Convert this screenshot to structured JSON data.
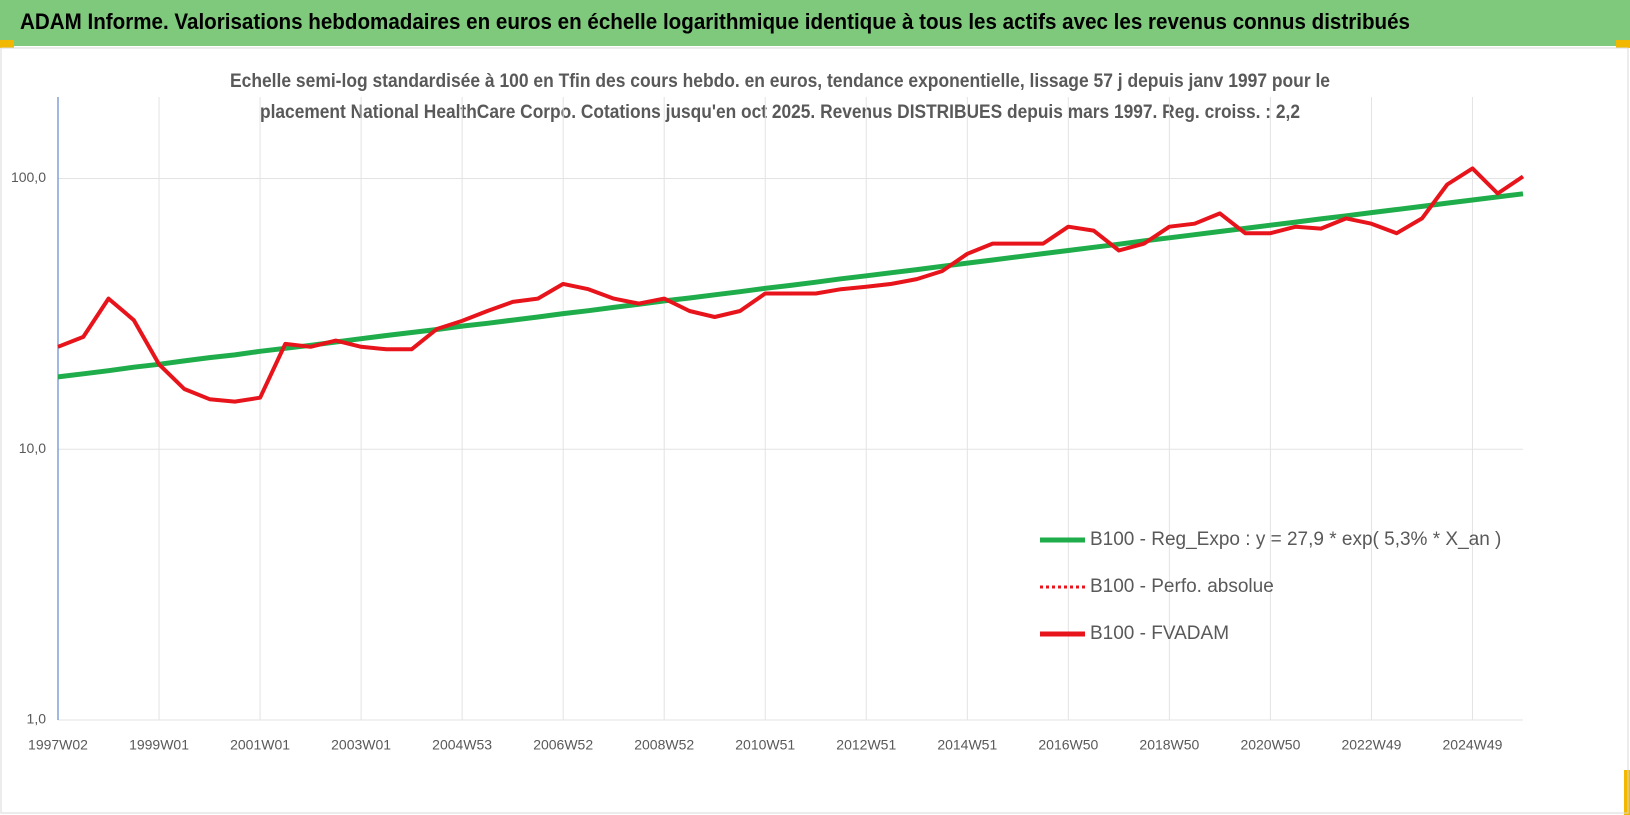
{
  "chart_data": {
    "type": "line",
    "title": "ADAM Informe. Valorisations hebdomadaires en euros en échelle logarithmique identique à tous les actifs avec les revenus connus distribués",
    "subtitle": [
      "Echelle semi-log standardisée à 100 en Tfin des cours hebdo. en euros, tendance exponentielle, lissage 57 j depuis janv 1997 pour le",
      "placement National HealthCare Corpo. Cotations jusqu'en oct 2025. Revenus DISTRIBUES depuis mars 1997. Reg. croiss. : 2,2"
    ],
    "log_scale": true,
    "grid": true,
    "legend": "right",
    "ylim": [
      1,
      200
    ],
    "yticks": [
      {
        "value": 1,
        "label": "1,0"
      },
      {
        "value": 10,
        "label": "10,0"
      },
      {
        "value": 100,
        "label": "100,0"
      }
    ],
    "categories": [
      "1997W02",
      null,
      null,
      null,
      "1999W01",
      null,
      null,
      null,
      "2001W01",
      null,
      null,
      null,
      "2003W01",
      null,
      null,
      null,
      "2004W53",
      null,
      null,
      null,
      "2006W52",
      null,
      null,
      null,
      "2008W52",
      null,
      null,
      null,
      "2010W51",
      null,
      null,
      null,
      "2012W51",
      null,
      null,
      null,
      "2014W51",
      null,
      null,
      null,
      "2016W50",
      null,
      null,
      null,
      "2018W50",
      null,
      null,
      null,
      "2020W50",
      null,
      null,
      null,
      "2022W49",
      null,
      null,
      null,
      "2024W49",
      null,
      null
    ],
    "series": [
      {
        "name": "B100 - Reg_Expo : y = 27,9 * exp( 5,3% * X_an )",
        "color": "#1fad4b",
        "style": "solid",
        "values": [
          18.5,
          19.0,
          19.5,
          20.1,
          20.6,
          21.2,
          21.8,
          22.3,
          23.0,
          23.6,
          24.2,
          24.9,
          25.6,
          26.3,
          27.0,
          27.7,
          28.5,
          29.2,
          30.0,
          30.8,
          31.7,
          32.5,
          33.4,
          34.3,
          35.3,
          36.2,
          37.2,
          38.2,
          39.3,
          40.3,
          41.4,
          42.6,
          43.7,
          44.9,
          46.1,
          47.4,
          48.7,
          50.0,
          51.4,
          52.8,
          54.2,
          55.7,
          57.2,
          58.8,
          60.4,
          62.0,
          63.7,
          65.4,
          67.2,
          69.0,
          70.9,
          72.8,
          74.8,
          76.8,
          78.9,
          81.1,
          83.3,
          85.5,
          87.8
        ]
      },
      {
        "name": "B100 - Perfo. absolue",
        "color": "#e8141b",
        "style": "dotted",
        "values": [
          null,
          null,
          null,
          null,
          null,
          null,
          null,
          null,
          null,
          null,
          null,
          null,
          null,
          null,
          null,
          null,
          null,
          null,
          null,
          null,
          null,
          null,
          null,
          null,
          null,
          null,
          null,
          null,
          null,
          null,
          null,
          null,
          null,
          null,
          null,
          null,
          null,
          null,
          null,
          null,
          null,
          null,
          null,
          null,
          null,
          null,
          null,
          null,
          null,
          null,
          null,
          null,
          null,
          null,
          null,
          null,
          null,
          null,
          null
        ]
      },
      {
        "name": "B100 - FVADAM",
        "color": "#e8141b",
        "style": "solid",
        "values": [
          23.9,
          26.0,
          36.0,
          30.0,
          20.6,
          16.7,
          15.3,
          15.0,
          15.5,
          24.5,
          23.9,
          25.2,
          23.9,
          23.4,
          23.4,
          27.8,
          29.8,
          32.4,
          35.0,
          36.0,
          40.8,
          39.0,
          36.0,
          34.5,
          36.0,
          32.4,
          30.8,
          32.4,
          37.6,
          37.6,
          37.6,
          39.0,
          39.8,
          40.8,
          42.5,
          45.5,
          52.7,
          57.5,
          57.5,
          57.5,
          66.4,
          64.2,
          54.2,
          57.5,
          66.4,
          68.1,
          74.3,
          62.8,
          62.8,
          66.4,
          65.3,
          71.2,
          68.1,
          62.8,
          71.2,
          95.0,
          109.0,
          88.0,
          101.7
        ]
      }
    ]
  }
}
